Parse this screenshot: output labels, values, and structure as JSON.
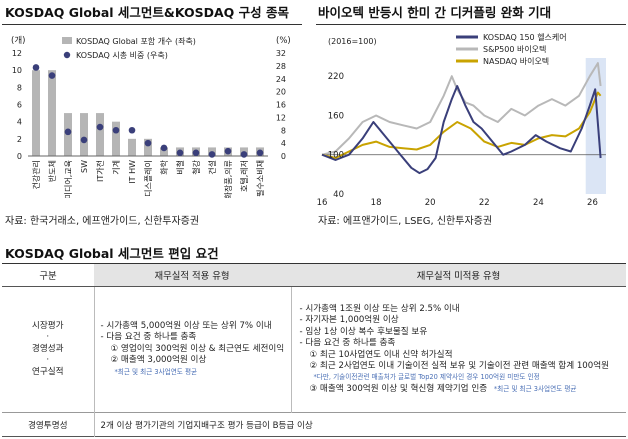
{
  "left_chart": {
    "title": "KOSDAQ Global 세그먼트&KOSDAQ 구성 종목",
    "left_unit": "(개)",
    "right_unit": "(%)",
    "legend": [
      "KOSDAQ Global  포함 개수 (좌축)",
      "KOSDAQ 시총 비중 (우축)"
    ],
    "source": "자료: 한국거래소, 에프앤가이드, 신한투자증권"
  },
  "right_chart": {
    "title": "바이오텍 반등시 한미 간 디커플링 완화 기대",
    "unit": "(2016=100)",
    "legend": [
      "KOSDAQ 150 헬스케어",
      "S&P500 바이오텍",
      "NASDAQ 바이오텍"
    ],
    "source": "자료: 에프앤가이드, LSEG, 신한투자증권"
  },
  "chart_data": [
    {
      "type": "bar",
      "title": "KOSDAQ Global 세그먼트&KOSDAQ 구성 종목",
      "categories": [
        "건강관리",
        "반도체",
        "미디어,교육",
        "SW",
        "IT가전",
        "기계",
        "IT HW",
        "디스플레이",
        "화학",
        "비철",
        "철강",
        "건설",
        "화장품,의류",
        "호텔,레저",
        "필수소비재"
      ],
      "ylim_left": [
        0,
        12
      ],
      "ylim_right": [
        0,
        32
      ],
      "yticks_left": [
        0,
        2,
        4,
        6,
        8,
        10,
        12
      ],
      "yticks_right": [
        0,
        4,
        8,
        12,
        16,
        20,
        24,
        28,
        32
      ],
      "series": [
        {
          "name": "KOSDAQ Global  포함 개수 (좌축)",
          "axis": "left",
          "kind": "bar",
          "values": [
            10,
            10,
            5,
            5,
            5,
            4,
            2,
            2,
            1,
            1,
            1,
            1,
            1,
            1,
            1
          ]
        },
        {
          "name": "KOSDAQ 시총 비중 (우축)",
          "axis": "right",
          "kind": "scatter",
          "values": [
            27.5,
            25,
            7.5,
            5,
            9,
            8,
            8,
            4,
            2.5,
            1,
            1,
            0.5,
            1.5,
            0.5,
            1
          ]
        }
      ]
    },
    {
      "type": "line",
      "title": "바이오텍 반등시 한미 간 디커플링 완화 기대",
      "xticks": [
        "16",
        "18",
        "20",
        "22",
        "24",
        "26"
      ],
      "yticks": [
        40,
        100,
        160,
        220
      ],
      "ylim": [
        40,
        260
      ],
      "xlim": [
        2016.0,
        2026.5
      ],
      "series": [
        {
          "name": "KOSDAQ 150 헬스케어",
          "color": "#3a3f7a",
          "x": [
            2016.0,
            2016.5,
            2017.0,
            2017.5,
            2017.9,
            2018.1,
            2018.5,
            2018.9,
            2019.3,
            2019.6,
            2019.9,
            2020.2,
            2020.5,
            2020.8,
            2021.0,
            2021.3,
            2021.6,
            2021.9,
            2022.3,
            2022.7,
            2023.0,
            2023.5,
            2023.9,
            2024.3,
            2024.8,
            2025.2,
            2025.6,
            2025.9,
            2026.1,
            2026.3
          ],
          "y": [
            100,
            92,
            100,
            125,
            150,
            140,
            120,
            100,
            80,
            72,
            78,
            95,
            150,
            185,
            205,
            175,
            150,
            140,
            120,
            100,
            105,
            115,
            130,
            120,
            110,
            105,
            140,
            175,
            200,
            95
          ]
        },
        {
          "name": "S&P500 바이오텍",
          "color": "#b8b8b8",
          "x": [
            2016.0,
            2016.5,
            2017.0,
            2017.5,
            2018.0,
            2018.5,
            2019.0,
            2019.5,
            2020.0,
            2020.5,
            2020.8,
            2021.0,
            2021.3,
            2021.6,
            2022.0,
            2022.5,
            2023.0,
            2023.5,
            2024.0,
            2024.5,
            2025.0,
            2025.5,
            2025.9,
            2026.2,
            2026.3
          ],
          "y": [
            100,
            105,
            125,
            150,
            160,
            150,
            145,
            140,
            150,
            190,
            220,
            200,
            180,
            175,
            160,
            150,
            170,
            160,
            175,
            185,
            175,
            190,
            220,
            240,
            205
          ]
        },
        {
          "name": "NASDAQ 바이오텍",
          "color": "#c9a300",
          "x": [
            2016.0,
            2016.5,
            2017.0,
            2017.5,
            2018.0,
            2018.5,
            2019.0,
            2019.5,
            2020.0,
            2020.5,
            2021.0,
            2021.5,
            2022.0,
            2022.5,
            2023.0,
            2023.5,
            2024.0,
            2024.5,
            2025.0,
            2025.5,
            2025.9,
            2026.2,
            2026.3
          ],
          "y": [
            100,
            95,
            105,
            115,
            120,
            112,
            110,
            108,
            115,
            135,
            150,
            140,
            120,
            112,
            118,
            115,
            125,
            130,
            128,
            140,
            165,
            195,
            190
          ]
        }
      ]
    }
  ],
  "requirements": {
    "section_title": "KOSDAQ Global 세그먼트 편입 요건",
    "headers": [
      "구분",
      "재무실적 적용 유형",
      "재무실적 미적용 유형"
    ],
    "row1": {
      "label_lines": [
        "시장평가",
        "·",
        "경영성과",
        "·",
        "연구실적"
      ],
      "financial": [
        "- 시가총액 5,000억원 이상 또는 상위 7% 이내",
        "- 다음 요건 중 하나를 충족",
        "① 영업이익 300억원 이상 & 최근연도 세전이익",
        "② 매출액 3,000억원 이상",
        "*최근 및 최근 3사업연도 평균"
      ],
      "nonfinancial": [
        "- 시가총액 1조원 이상 또는 상위 2.5% 이내",
        "- 자기자본 1,000억원 이상",
        "- 임상 1상 이상 복수 후보물질 보유",
        "- 다음 요건 중 하나를 충족",
        "① 최근 10사업연도 이내 신약 허가실적",
        "② 최근 2사업연도 이내 기술이전 실적 보유 및 기술이전 관련 매출액 합계 100억원",
        "*다만, 기술이전관련 매출처가 글로벌 Top20 제약사인 경우 100억원 미만도 인정",
        "③ 매출액 300억원 이상 및 혁신형 제약기업 인증",
        "*최근 및 최근 3사업연도 평균"
      ]
    },
    "row2": {
      "label": "경영투명성",
      "text": "2개 이상 평가기관의 기업지배구조 평가 등급이 B등급 이상"
    }
  }
}
